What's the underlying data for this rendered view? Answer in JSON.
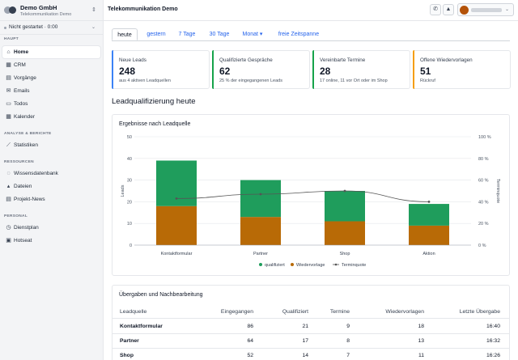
{
  "org": {
    "name": "Demo GmbH",
    "subtitle": "Telekommunikation Demo"
  },
  "status": {
    "label": "Nicht gestartet · 0:00"
  },
  "sidebar": {
    "sections": [
      {
        "title": "HAUPT",
        "items": [
          {
            "label": "Home",
            "icon": "home-icon",
            "active": true
          },
          {
            "label": "CRM",
            "icon": "crm-icon"
          },
          {
            "label": "Vorgänge",
            "icon": "cases-icon"
          },
          {
            "label": "Emails",
            "icon": "mail-icon"
          },
          {
            "label": "Todos",
            "icon": "todo-icon"
          },
          {
            "label": "Kalender",
            "icon": "calendar-icon"
          }
        ]
      },
      {
        "title": "ANALYSE & BERICHTE",
        "items": [
          {
            "label": "Statistiken",
            "icon": "stats-icon"
          }
        ]
      },
      {
        "title": "RESSOURCEN",
        "items": [
          {
            "label": "Wissensdatenbank",
            "icon": "bulb-icon"
          },
          {
            "label": "Dateien",
            "icon": "file-icon"
          },
          {
            "label": "Projekt-News",
            "icon": "news-icon"
          }
        ]
      },
      {
        "title": "PERSONAL",
        "items": [
          {
            "label": "Dienstplan",
            "icon": "clock-icon"
          },
          {
            "label": "Hotseat",
            "icon": "hotseat-icon"
          }
        ]
      }
    ]
  },
  "header": {
    "title": "Telekommunikation Demo",
    "icons": [
      "phone-icon",
      "alert-icon"
    ]
  },
  "tabs": [
    {
      "label": "heute",
      "active": true
    },
    {
      "label": "gestern"
    },
    {
      "label": "7 Tage"
    },
    {
      "label": "30 Tage"
    },
    {
      "label": "Monat ▾"
    },
    {
      "label": "freie Zeitspanne"
    }
  ],
  "kpis": [
    {
      "label": "Neue Leads",
      "value": "248",
      "sub": "aus 4 aktiven Leadquellen",
      "color": "#3b82f6"
    },
    {
      "label": "Qualifizierte Gespräche",
      "value": "62",
      "sub": "25 % der eingegangenen Leads",
      "color": "#16a34a"
    },
    {
      "label": "Vereinbarte Termine",
      "value": "28",
      "sub": "17 online, 11 vor Ort oder im Shop",
      "color": "#16a34a"
    },
    {
      "label": "Offene Wiedervorlagen",
      "value": "51",
      "sub": "Rückruf",
      "color": "#f59e0b"
    }
  ],
  "section_title": "Leadqualifizierung heute",
  "chart_card_title": "Ergebnisse nach Leadquelle",
  "chart_data": {
    "type": "bar",
    "stacked": true,
    "categories": [
      "Kontaktformular",
      "Partner",
      "Shop",
      "Aktion"
    ],
    "series": [
      {
        "name": "qualifiziert",
        "values": [
          21,
          17,
          14,
          10
        ],
        "color": "#1f9d5c"
      },
      {
        "name": "Wiedervorlage",
        "values": [
          18,
          13,
          11,
          9
        ],
        "color": "#b86a06"
      }
    ],
    "line_series": {
      "name": "Terminquote",
      "values": [
        43,
        47,
        50,
        40
      ],
      "color": "#555555",
      "axis": "right"
    },
    "ylabel": "Leads",
    "y2label": "Terminquote",
    "ylim": [
      0,
      50
    ],
    "yticks": [
      "0",
      "10",
      "20",
      "30",
      "40",
      "50"
    ],
    "y2lim": [
      0,
      100
    ],
    "y2ticks": [
      "0 %",
      "20 %",
      "40 %",
      "60 %",
      "80 %",
      "100 %"
    ],
    "legend": "bottom"
  },
  "table": {
    "title": "Übergaben und Nachbearbeitung",
    "columns": [
      "Leadquelle",
      "Eingegangen",
      "Qualifiziert",
      "Termine",
      "Wiedervorlagen",
      "Letzte Übergabe"
    ],
    "rows": [
      [
        "Kontaktformular",
        "86",
        "21",
        "9",
        "18",
        "16:40"
      ],
      [
        "Partner",
        "64",
        "17",
        "8",
        "13",
        "16:32"
      ],
      [
        "Shop",
        "52",
        "14",
        "7",
        "11",
        "16:26"
      ]
    ]
  }
}
